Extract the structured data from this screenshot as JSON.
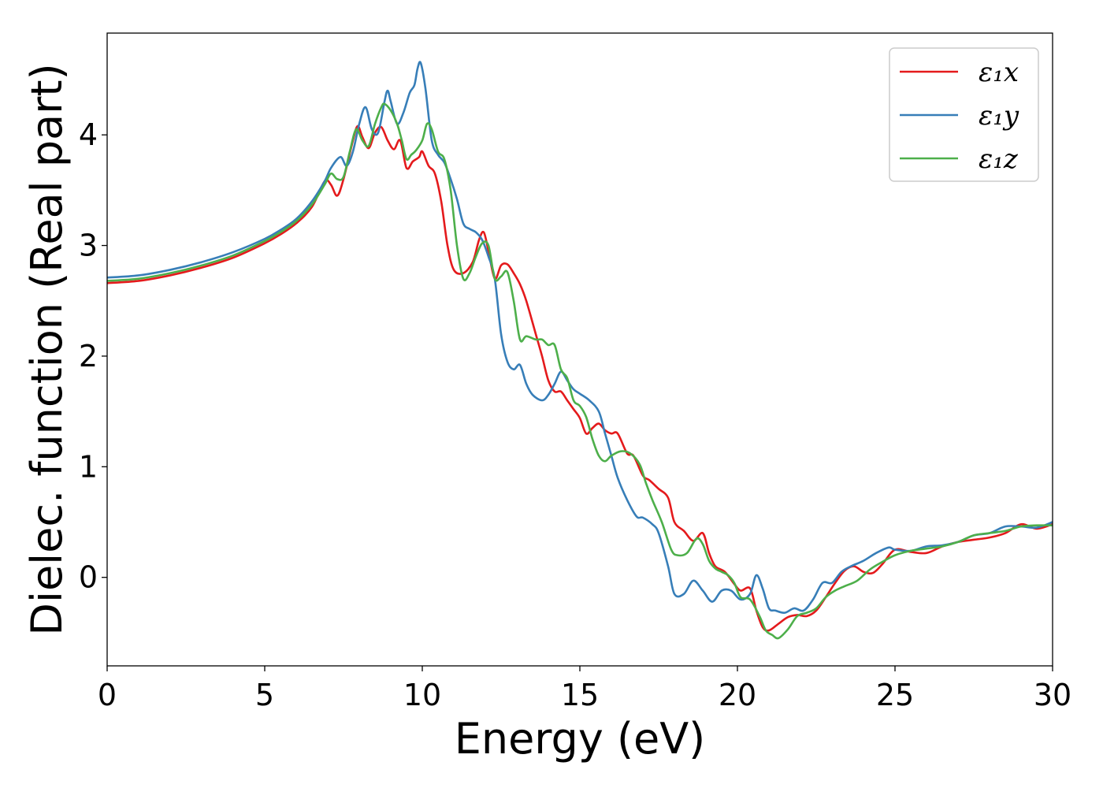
{
  "chart_data": {
    "type": "line",
    "title": "",
    "xlabel": "Energy (eV)",
    "ylabel": "Dielec. function (Real part)",
    "xlim": [
      0,
      30
    ],
    "ylim": [
      -0.8,
      4.92
    ],
    "xticks": [
      0,
      5,
      10,
      15,
      20,
      25,
      30
    ],
    "xtick_labels": [
      "0",
      "5",
      "10",
      "15",
      "20",
      "25",
      "30"
    ],
    "yticks": [
      0,
      1,
      2,
      3,
      4
    ],
    "ytick_labels": [
      "0",
      "1",
      "2",
      "3",
      "4"
    ],
    "grid": false,
    "legend_position": "top-right",
    "series": [
      {
        "name": "ε₁x",
        "color": "#e41a1c",
        "x": [
          0,
          1,
          2,
          3,
          4,
          5,
          5.5,
          6,
          6.5,
          6.9,
          7.1,
          7.3,
          7.5,
          7.8,
          7.95,
          8.1,
          8.3,
          8.5,
          8.7,
          8.9,
          9.1,
          9.3,
          9.5,
          9.7,
          9.9,
          10.0,
          10.2,
          10.4,
          10.6,
          10.8,
          11.0,
          11.3,
          11.6,
          11.8,
          11.95,
          12.1,
          12.3,
          12.5,
          12.7,
          12.9,
          13.1,
          13.3,
          13.6,
          13.8,
          14.0,
          14.2,
          14.4,
          14.6,
          14.8,
          15.0,
          15.2,
          15.4,
          15.6,
          15.8,
          16.0,
          16.2,
          16.5,
          16.7,
          17.0,
          17.2,
          17.5,
          17.8,
          18.0,
          18.3,
          18.6,
          18.9,
          19.1,
          19.3,
          19.6,
          19.9,
          20.1,
          20.4,
          20.6,
          20.8,
          21.0,
          21.3,
          21.6,
          21.9,
          22.2,
          22.5,
          22.8,
          23.1,
          23.4,
          23.7,
          24.0,
          24.3,
          24.6,
          25.0,
          25.5,
          26.0,
          26.5,
          27.0,
          27.5,
          28.0,
          28.5,
          29.0,
          29.5,
          30.0
        ],
        "y": [
          2.66,
          2.68,
          2.73,
          2.8,
          2.89,
          3.02,
          3.1,
          3.2,
          3.35,
          3.58,
          3.55,
          3.45,
          3.6,
          3.95,
          4.08,
          3.98,
          3.88,
          4.02,
          4.07,
          3.95,
          3.87,
          3.95,
          3.7,
          3.76,
          3.8,
          3.85,
          3.72,
          3.65,
          3.4,
          3.0,
          2.78,
          2.75,
          2.85,
          3.05,
          3.12,
          2.95,
          2.7,
          2.82,
          2.83,
          2.75,
          2.65,
          2.5,
          2.2,
          2.0,
          1.78,
          1.68,
          1.68,
          1.6,
          1.52,
          1.44,
          1.3,
          1.35,
          1.39,
          1.33,
          1.3,
          1.3,
          1.12,
          1.1,
          0.92,
          0.88,
          0.8,
          0.72,
          0.5,
          0.42,
          0.33,
          0.4,
          0.22,
          0.1,
          0.05,
          -0.06,
          -0.12,
          -0.1,
          -0.3,
          -0.45,
          -0.48,
          -0.42,
          -0.36,
          -0.34,
          -0.35,
          -0.3,
          -0.18,
          -0.05,
          0.06,
          0.1,
          0.05,
          0.04,
          0.12,
          0.25,
          0.23,
          0.22,
          0.28,
          0.32,
          0.34,
          0.36,
          0.4,
          0.48,
          0.44,
          0.48
        ]
      },
      {
        "name": "ε₁y",
        "color": "#377eb8",
        "x": [
          0,
          1,
          2,
          3,
          4,
          5,
          5.5,
          6,
          6.5,
          6.9,
          7.1,
          7.4,
          7.6,
          7.8,
          8.0,
          8.2,
          8.4,
          8.6,
          8.8,
          8.9,
          9.0,
          9.2,
          9.4,
          9.6,
          9.75,
          9.85,
          9.95,
          10.1,
          10.3,
          10.5,
          10.7,
          10.9,
          11.1,
          11.3,
          11.5,
          11.7,
          11.9,
          12.1,
          12.3,
          12.5,
          12.7,
          12.9,
          13.1,
          13.3,
          13.5,
          13.8,
          14.0,
          14.2,
          14.4,
          14.6,
          14.8,
          15.0,
          15.3,
          15.6,
          15.8,
          16.0,
          16.2,
          16.5,
          16.8,
          17.0,
          17.3,
          17.5,
          17.8,
          18.0,
          18.3,
          18.6,
          18.9,
          19.2,
          19.5,
          19.8,
          20.1,
          20.4,
          20.6,
          20.8,
          21.0,
          21.2,
          21.5,
          21.8,
          22.1,
          22.4,
          22.7,
          23.0,
          23.3,
          23.6,
          24.0,
          24.4,
          24.8,
          25.0,
          25.5,
          26.0,
          26.5,
          27.0,
          27.5,
          28.0,
          28.5,
          29.0,
          29.5,
          30.0
        ],
        "y": [
          2.71,
          2.73,
          2.78,
          2.85,
          2.94,
          3.06,
          3.14,
          3.24,
          3.4,
          3.58,
          3.7,
          3.8,
          3.72,
          3.85,
          4.1,
          4.25,
          4.05,
          4.02,
          4.3,
          4.4,
          4.3,
          4.1,
          4.2,
          4.38,
          4.45,
          4.6,
          4.65,
          4.42,
          3.95,
          3.82,
          3.75,
          3.6,
          3.42,
          3.2,
          3.15,
          3.12,
          3.05,
          2.9,
          2.7,
          2.2,
          1.95,
          1.88,
          1.92,
          1.75,
          1.65,
          1.6,
          1.65,
          1.75,
          1.86,
          1.78,
          1.7,
          1.66,
          1.6,
          1.5,
          1.3,
          1.1,
          0.9,
          0.7,
          0.55,
          0.54,
          0.48,
          0.4,
          0.1,
          -0.15,
          -0.15,
          -0.03,
          -0.12,
          -0.22,
          -0.12,
          -0.12,
          -0.2,
          -0.15,
          0.02,
          -0.1,
          -0.28,
          -0.3,
          -0.32,
          -0.28,
          -0.3,
          -0.2,
          -0.05,
          -0.05,
          0.05,
          0.1,
          0.15,
          0.22,
          0.27,
          0.25,
          0.24,
          0.28,
          0.29,
          0.32,
          0.38,
          0.4,
          0.46,
          0.46,
          0.45,
          0.5
        ]
      },
      {
        "name": "ε₁z",
        "color": "#4daf4a",
        "x": [
          0,
          1,
          2,
          3,
          4,
          5,
          5.5,
          6,
          6.5,
          6.9,
          7.1,
          7.3,
          7.5,
          7.7,
          7.9,
          8.1,
          8.3,
          8.5,
          8.7,
          8.8,
          9.0,
          9.2,
          9.35,
          9.5,
          9.65,
          9.8,
          10.0,
          10.15,
          10.3,
          10.5,
          10.7,
          10.9,
          11.1,
          11.3,
          11.5,
          11.7,
          11.9,
          12.1,
          12.3,
          12.5,
          12.7,
          12.9,
          13.1,
          13.3,
          13.6,
          13.8,
          14.0,
          14.2,
          14.4,
          14.6,
          14.8,
          15.0,
          15.2,
          15.4,
          15.6,
          15.8,
          16.0,
          16.3,
          16.6,
          16.9,
          17.1,
          17.3,
          17.6,
          17.9,
          18.1,
          18.4,
          18.7,
          18.9,
          19.1,
          19.3,
          19.5,
          19.7,
          19.9,
          20.1,
          20.4,
          20.7,
          20.9,
          21.1,
          21.3,
          21.6,
          21.9,
          22.2,
          22.5,
          22.8,
          23.1,
          23.4,
          23.8,
          24.2,
          24.6,
          25.0,
          25.5,
          26.0,
          26.5,
          27.0,
          27.5,
          28.0,
          28.5,
          29.0,
          29.5,
          30.0
        ],
        "y": [
          2.68,
          2.7,
          2.75,
          2.82,
          2.91,
          3.04,
          3.12,
          3.22,
          3.37,
          3.55,
          3.65,
          3.6,
          3.62,
          3.85,
          4.05,
          3.95,
          3.9,
          4.1,
          4.25,
          4.28,
          4.22,
          4.1,
          3.95,
          3.78,
          3.82,
          3.86,
          3.95,
          4.1,
          4.05,
          3.85,
          3.78,
          3.5,
          3.0,
          2.7,
          2.75,
          2.9,
          3.02,
          3.0,
          2.7,
          2.72,
          2.76,
          2.5,
          2.15,
          2.18,
          2.15,
          2.15,
          2.1,
          2.1,
          1.88,
          1.8,
          1.6,
          1.55,
          1.45,
          1.25,
          1.1,
          1.05,
          1.1,
          1.14,
          1.12,
          1.02,
          0.85,
          0.7,
          0.5,
          0.25,
          0.2,
          0.22,
          0.35,
          0.3,
          0.15,
          0.08,
          0.05,
          0.02,
          -0.05,
          -0.18,
          -0.2,
          -0.35,
          -0.48,
          -0.52,
          -0.55,
          -0.47,
          -0.35,
          -0.32,
          -0.28,
          -0.18,
          -0.12,
          -0.08,
          -0.03,
          0.07,
          0.14,
          0.2,
          0.24,
          0.26,
          0.28,
          0.32,
          0.38,
          0.4,
          0.42,
          0.46,
          0.47,
          0.47
        ]
      }
    ]
  }
}
